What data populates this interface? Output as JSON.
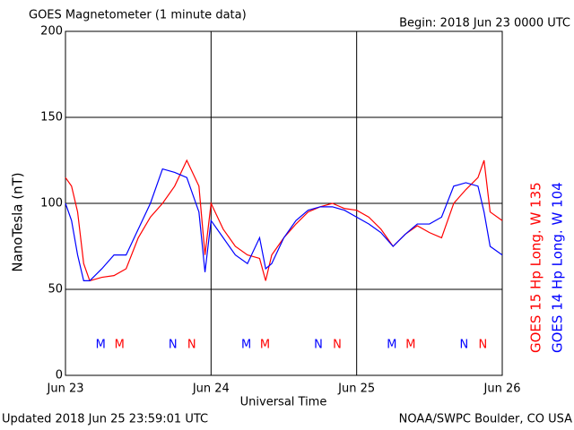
{
  "chart_data": {
    "type": "line",
    "title": "GOES Magnetometer (1 minute data)",
    "subtitle": "Begin:  2018 Jun 23 0000 UTC",
    "xlabel": "Universal Time",
    "ylabel": "NanoTesla (nT)",
    "footer_left": "Updated 2018 Jun 25 23:59:01 UTC",
    "footer_right": "NOAA/SWPC Boulder, CO USA",
    "x": [
      0,
      1,
      2,
      3,
      4,
      6,
      8,
      10,
      12,
      14,
      16,
      18,
      20,
      22,
      23,
      24,
      26,
      28,
      30,
      32,
      33,
      34,
      36,
      38,
      40,
      42,
      44,
      46,
      48,
      50,
      52,
      54,
      56,
      58,
      60,
      62,
      64,
      66,
      68,
      69,
      70,
      72
    ],
    "series": [
      {
        "name": "GOES 15 Hp  Long. W 135",
        "color": "#ff0000",
        "values": [
          115,
          110,
          95,
          65,
          55,
          57,
          58,
          62,
          80,
          92,
          100,
          110,
          125,
          110,
          70,
          100,
          85,
          75,
          70,
          68,
          55,
          70,
          80,
          88,
          95,
          98,
          100,
          97,
          96,
          92,
          85,
          75,
          82,
          87,
          83,
          80,
          100,
          108,
          115,
          125,
          95,
          90
        ]
      },
      {
        "name": "GOES 14 Hp  Long. W 104",
        "color": "#0000ff",
        "values": [
          100,
          90,
          70,
          55,
          55,
          62,
          70,
          70,
          85,
          100,
          120,
          118,
          115,
          95,
          60,
          90,
          80,
          70,
          65,
          80,
          62,
          65,
          80,
          90,
          96,
          98,
          98,
          96,
          92,
          88,
          83,
          75,
          82,
          88,
          88,
          92,
          110,
          112,
          110,
          95,
          75,
          70
        ]
      }
    ],
    "annotations": [
      {
        "text": "M",
        "x": 5.8,
        "color": "#0000ff"
      },
      {
        "text": "M",
        "x": 8.9,
        "color": "#ff0000"
      },
      {
        "text": "N",
        "x": 17.7,
        "color": "#0000ff"
      },
      {
        "text": "N",
        "x": 20.8,
        "color": "#ff0000"
      },
      {
        "text": "M",
        "x": 29.8,
        "color": "#0000ff"
      },
      {
        "text": "M",
        "x": 32.9,
        "color": "#ff0000"
      },
      {
        "text": "N",
        "x": 41.7,
        "color": "#0000ff"
      },
      {
        "text": "N",
        "x": 44.8,
        "color": "#ff0000"
      },
      {
        "text": "M",
        "x": 53.8,
        "color": "#0000ff"
      },
      {
        "text": "M",
        "x": 56.9,
        "color": "#ff0000"
      },
      {
        "text": "N",
        "x": 65.7,
        "color": "#0000ff"
      },
      {
        "text": "N",
        "x": 68.8,
        "color": "#ff0000"
      }
    ],
    "xlim": [
      0,
      72
    ],
    "xticks": [
      {
        "value": 0,
        "label": "Jun 23"
      },
      {
        "value": 24,
        "label": "Jun 24"
      },
      {
        "value": 48,
        "label": "Jun 25"
      },
      {
        "value": 72,
        "label": "Jun 26"
      }
    ],
    "ylim": [
      0,
      200
    ],
    "yticks": [
      0,
      50,
      100,
      150,
      200
    ],
    "grid": true
  }
}
